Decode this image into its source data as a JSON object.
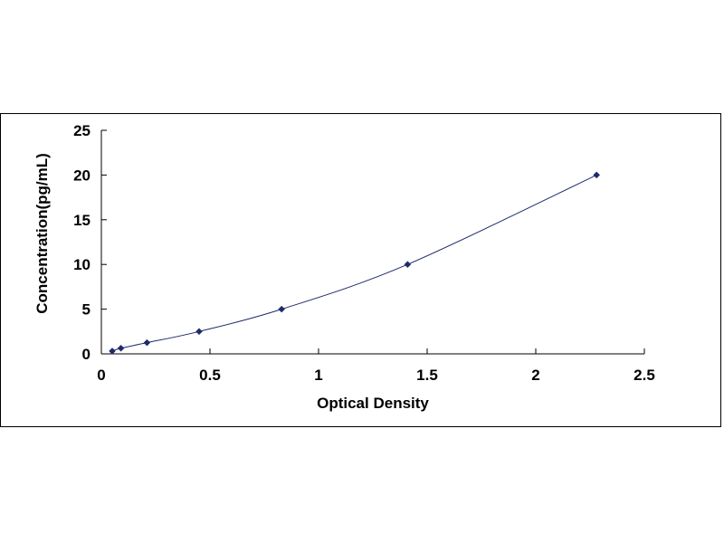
{
  "chart_data": {
    "type": "scatter",
    "title": "",
    "xlabel": "Optical Density",
    "ylabel": "Concentration(pg/mL)",
    "xlim": [
      0,
      2.5
    ],
    "ylim": [
      0,
      25
    ],
    "x_ticks": [
      "0",
      "0.5",
      "1",
      "1.5",
      "2",
      "2.5"
    ],
    "y_ticks": [
      "0",
      "5",
      "10",
      "15",
      "20",
      "25"
    ],
    "grid": false,
    "legend": "none",
    "series": [
      {
        "marker": "diamond",
        "color": "#1F2A6B",
        "line": "smooth",
        "points": [
          {
            "x": 0.05,
            "y": 0.31
          },
          {
            "x": 0.09,
            "y": 0.63
          },
          {
            "x": 0.21,
            "y": 1.25
          },
          {
            "x": 0.45,
            "y": 2.5
          },
          {
            "x": 0.83,
            "y": 5
          },
          {
            "x": 1.41,
            "y": 10
          },
          {
            "x": 2.28,
            "y": 20
          }
        ]
      }
    ]
  }
}
